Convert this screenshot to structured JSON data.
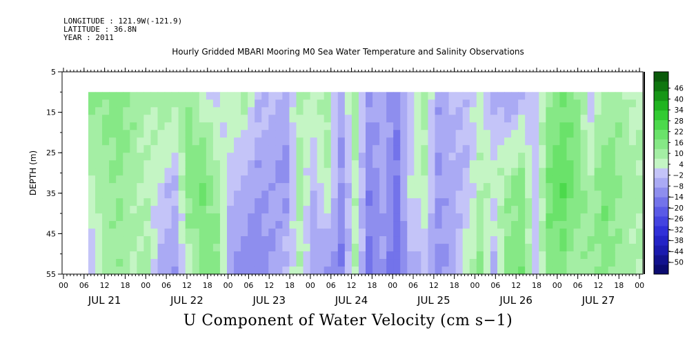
{
  "header": {
    "longitude": "LONGITUDE : 121.9W(-121.9)",
    "latitude": "LATITUDE : 36.8N",
    "year": "YEAR : 2011"
  },
  "chart_data": {
    "type": "heatmap",
    "title": "Hourly Gridded MBARI Mooring M0 Sea Water Temperature and Salinity Observations",
    "variable_label": "U Component of Water Velocity (cm s−1)",
    "ylabel": "DEPTH (m)",
    "ylim": [
      5,
      55
    ],
    "y_inverted": true,
    "y_ticks": [
      5,
      15,
      25,
      35,
      45,
      55
    ],
    "y_tick_labels": [
      "5",
      "15",
      "25",
      "35",
      "45",
      "55"
    ],
    "x_hour_labels": [
      "00",
      "06",
      "12",
      "18",
      "00",
      "06",
      "12",
      "18",
      "00",
      "06",
      "12",
      "18",
      "00",
      "06",
      "12",
      "18",
      "00",
      "06",
      "12",
      "18",
      "00",
      "06",
      "12",
      "18",
      "00",
      "06",
      "12",
      "18",
      "00"
    ],
    "x_day_labels": [
      "JUL 21",
      "JUL 22",
      "JUL 23",
      "JUL 24",
      "JUL 25",
      "JUL 26",
      "JUL 27"
    ],
    "data_depth_range": [
      10,
      55
    ],
    "colorbar_levels": [
      -50,
      -44,
      -38,
      -32,
      -26,
      -20,
      -14,
      -8,
      -2,
      4,
      10,
      16,
      22,
      28,
      34,
      40,
      46
    ],
    "colorbar_labels": [
      "46",
      "40",
      "34",
      "28",
      "22",
      "16",
      "10",
      "4",
      "−2",
      "−8",
      "−14",
      "−20",
      "−26",
      "−32",
      "−38",
      "−44",
      "−50"
    ],
    "colorbar_colors": [
      "#0b0b70",
      "#12128e",
      "#1a1aae",
      "#2323c6",
      "#3030d8",
      "#4444e0",
      "#5a5ae6",
      "#7373ea",
      "#8e8eee",
      "#aaaaf4",
      "#c4c4f8",
      "#c4f5c4",
      "#a4eea4",
      "#86e886",
      "#6ae26a",
      "#4cd94c",
      "#32cb32",
      "#20b420",
      "#169616",
      "#0e760e",
      "#0a5a0a"
    ],
    "columns": [
      {
        "col": 0,
        "surface": 10,
        "mid": 4,
        "bottom": -8
      },
      {
        "col": 2,
        "surface": 12,
        "mid": 8,
        "bottom": 6
      },
      {
        "col": 4,
        "surface": 14,
        "mid": 10,
        "bottom": 8
      },
      {
        "col": 6,
        "surface": 10,
        "mid": 6,
        "bottom": 4
      },
      {
        "col": 8,
        "surface": 4,
        "mid": 2,
        "bottom": 8
      },
      {
        "col": 10,
        "surface": 8,
        "mid": -4,
        "bottom": -10
      },
      {
        "col": 12,
        "surface": 6,
        "mid": -8,
        "bottom": -14
      },
      {
        "col": 14,
        "surface": 10,
        "mid": 14,
        "bottom": 2
      },
      {
        "col": 16,
        "surface": 2,
        "mid": 16,
        "bottom": 12
      },
      {
        "col": 18,
        "surface": -4,
        "mid": 6,
        "bottom": 14
      },
      {
        "col": 20,
        "surface": 2,
        "mid": -6,
        "bottom": -12
      },
      {
        "col": 22,
        "surface": 6,
        "mid": -10,
        "bottom": -16
      },
      {
        "col": 24,
        "surface": -6,
        "mid": -14,
        "bottom": -18
      },
      {
        "col": 26,
        "surface": -8,
        "mid": -12,
        "bottom": -14
      },
      {
        "col": 28,
        "surface": -10,
        "mid": -16,
        "bottom": -6
      },
      {
        "col": 30,
        "surface": 4,
        "mid": 6,
        "bottom": 2
      },
      {
        "col": 32,
        "surface": 2,
        "mid": -8,
        "bottom": -12
      },
      {
        "col": 34,
        "surface": 6,
        "mid": 4,
        "bottom": -16
      },
      {
        "col": 36,
        "surface": -12,
        "mid": -16,
        "bottom": -20
      },
      {
        "col": 38,
        "surface": 8,
        "mid": 2,
        "bottom": 4
      },
      {
        "col": 40,
        "surface": -14,
        "mid": -18,
        "bottom": -22
      },
      {
        "col": 42,
        "surface": -10,
        "mid": -12,
        "bottom": -16
      },
      {
        "col": 44,
        "surface": -18,
        "mid": -22,
        "bottom": -24
      },
      {
        "col": 46,
        "surface": -6,
        "mid": -2,
        "bottom": -10
      },
      {
        "col": 48,
        "surface": 6,
        "mid": 4,
        "bottom": -8
      },
      {
        "col": 50,
        "surface": -12,
        "mid": -14,
        "bottom": -16
      },
      {
        "col": 52,
        "surface": -8,
        "mid": -10,
        "bottom": -12
      },
      {
        "col": 54,
        "surface": -6,
        "mid": -8,
        "bottom": 2
      },
      {
        "col": 56,
        "surface": -2,
        "mid": 4,
        "bottom": 10
      },
      {
        "col": 58,
        "surface": -10,
        "mid": 2,
        "bottom": -8
      },
      {
        "col": 60,
        "surface": -12,
        "mid": 8,
        "bottom": 12
      },
      {
        "col": 62,
        "surface": -8,
        "mid": 12,
        "bottom": 16
      },
      {
        "col": 64,
        "surface": -4,
        "mid": -6,
        "bottom": -4
      },
      {
        "col": 66,
        "surface": 8,
        "mid": 16,
        "bottom": 14
      },
      {
        "col": 68,
        "surface": 16,
        "mid": 22,
        "bottom": 12
      },
      {
        "col": 70,
        "surface": 10,
        "mid": 14,
        "bottom": 6
      },
      {
        "col": 72,
        "surface": -4,
        "mid": 6,
        "bottom": 10
      },
      {
        "col": 74,
        "surface": 4,
        "mid": 16,
        "bottom": 12
      },
      {
        "col": 76,
        "surface": 8,
        "mid": 10,
        "bottom": 8
      },
      {
        "col": 78,
        "surface": 2,
        "mid": 6,
        "bottom": 4
      }
    ]
  }
}
